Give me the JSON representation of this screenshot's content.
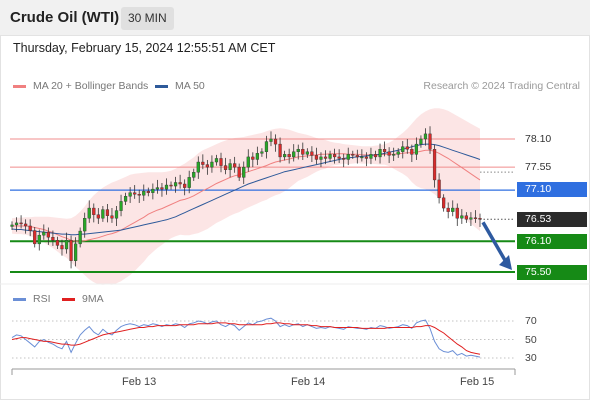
{
  "header": {
    "instrument": "Crude Oil (WTI)",
    "interval": "30 MIN"
  },
  "timestamp": "Thursday, February 15, 2024 12:55:51 AM CET",
  "legend": {
    "ma20_label": "MA 20 + Bollinger Bands",
    "ma20_color": "#f08080",
    "ma50_label": "MA 50",
    "ma50_color": "#2e5a9a",
    "credit": "Research © 2024 Trading Central"
  },
  "rsi_legend": {
    "rsi_label": "RSI",
    "rsi_color": "#6b8fd6",
    "ma_label": "9MA",
    "ma_color": "#e02020"
  },
  "levels": [
    {
      "value": "78.10",
      "kind": "resistance",
      "color": "#f08c8c"
    },
    {
      "value": "77.55",
      "kind": "resistance",
      "color": "#f08c8c"
    },
    {
      "value": "77.10",
      "kind": "pivot",
      "color": "#2f6fe0"
    },
    {
      "value": "76.53",
      "kind": "last",
      "color": "#2b2b2b"
    },
    {
      "value": "76.10",
      "kind": "support",
      "color": "#168a16"
    },
    {
      "value": "75.50",
      "kind": "support",
      "color": "#168a16"
    }
  ],
  "rsi_levels": [
    "70",
    "50",
    "30"
  ],
  "x_axis": {
    "labels": [
      "Feb 13",
      "Feb 14",
      "Feb 15"
    ]
  },
  "chart_data": {
    "type": "candlestick",
    "title": "Crude Oil (WTI)",
    "interval": "30 MIN",
    "ylim": [
      75.4,
      78.7
    ],
    "closes": [
      76.42,
      76.46,
      76.44,
      76.4,
      76.31,
      76.05,
      76.22,
      76.28,
      76.18,
      76.12,
      76.02,
      75.95,
      76.12,
      75.72,
      76.05,
      76.3,
      76.55,
      76.75,
      76.62,
      76.55,
      76.72,
      76.6,
      76.55,
      76.7,
      76.88,
      76.98,
      77.05,
      77.02,
      77.0,
      77.08,
      77.05,
      77.12,
      77.15,
      77.12,
      77.2,
      77.18,
      77.25,
      77.22,
      77.15,
      77.35,
      77.45,
      77.65,
      77.6,
      77.55,
      77.65,
      77.72,
      77.58,
      77.5,
      77.62,
      77.55,
      77.35,
      77.55,
      77.75,
      77.7,
      77.82,
      77.85,
      78.05,
      78.1,
      78.0,
      77.75,
      77.8,
      77.75,
      77.85,
      77.9,
      77.8,
      77.85,
      77.78,
      77.7,
      77.75,
      77.72,
      77.8,
      77.75,
      77.72,
      77.7,
      77.8,
      77.78,
      77.75,
      77.75,
      77.72,
      77.8,
      77.75,
      77.9,
      77.85,
      77.78,
      77.8,
      77.85,
      77.95,
      77.9,
      77.8,
      78.0,
      78.1,
      78.2,
      77.9,
      77.3,
      76.95,
      76.75,
      76.68,
      76.75,
      76.55,
      76.6,
      76.53,
      76.56,
      76.55,
      76.53
    ],
    "ma20": [
      76.4,
      76.4,
      76.4,
      76.4,
      76.39,
      76.37,
      76.35,
      76.33,
      76.3,
      76.27,
      76.23,
      76.19,
      76.16,
      76.12,
      76.1,
      76.1,
      76.11,
      76.13,
      76.15,
      76.17,
      76.2,
      76.23,
      76.25,
      76.28,
      76.32,
      76.37,
      76.42,
      76.47,
      76.52,
      76.57,
      76.63,
      76.67,
      76.71,
      76.74,
      76.78,
      76.82,
      76.86,
      76.9,
      76.92,
      76.95,
      76.99,
      77.04,
      77.09,
      77.13,
      77.18,
      77.23,
      77.27,
      77.31,
      77.35,
      77.38,
      77.4,
      77.43,
      77.46,
      77.49,
      77.52,
      77.55,
      77.58,
      77.62,
      77.65,
      77.67,
      77.69,
      77.71,
      77.73,
      77.75,
      77.76,
      77.77,
      77.78,
      77.79,
      77.8,
      77.8,
      77.81,
      77.81,
      77.81,
      77.81,
      77.8,
      77.8,
      77.8,
      77.79,
      77.79,
      77.79,
      77.79,
      77.79,
      77.8,
      77.8,
      77.8,
      77.81,
      77.82,
      77.83,
      77.83,
      77.84,
      77.86,
      77.88,
      77.88,
      77.86,
      77.82,
      77.77,
      77.72,
      77.66,
      77.6,
      77.54,
      77.48,
      77.42,
      77.36,
      77.3
    ],
    "bb_upper": [
      76.55,
      76.56,
      76.56,
      76.57,
      76.57,
      76.58,
      76.58,
      76.58,
      76.58,
      76.57,
      76.56,
      76.55,
      76.54,
      76.55,
      76.6,
      76.68,
      76.78,
      76.9,
      77.0,
      77.08,
      77.15,
      77.2,
      77.25,
      77.28,
      77.32,
      77.36,
      77.4,
      77.42,
      77.43,
      77.44,
      77.45,
      77.45,
      77.45,
      77.45,
      77.46,
      77.48,
      77.52,
      77.57,
      77.62,
      77.68,
      77.74,
      77.82,
      77.88,
      77.92,
      77.96,
      78.0,
      78.04,
      78.07,
      78.1,
      78.12,
      78.13,
      78.14,
      78.16,
      78.18,
      78.2,
      78.22,
      78.25,
      78.28,
      78.3,
      78.31,
      78.3,
      78.28,
      78.25,
      78.22,
      78.2,
      78.18,
      78.15,
      78.12,
      78.1,
      78.08,
      78.05,
      78.03,
      78.02,
      78.0,
      77.99,
      77.98,
      77.97,
      77.96,
      77.96,
      77.96,
      77.97,
      77.98,
      78.0,
      78.03,
      78.08,
      78.15,
      78.22,
      78.3,
      78.4,
      78.5,
      78.58,
      78.64,
      78.68,
      78.7,
      78.7,
      78.68,
      78.65,
      78.6,
      78.55,
      78.5,
      78.45,
      78.4,
      78.35,
      78.3
    ],
    "bb_lower": [
      76.25,
      76.24,
      76.24,
      76.23,
      76.21,
      76.16,
      76.12,
      76.08,
      76.02,
      75.97,
      75.9,
      75.83,
      75.78,
      75.69,
      75.6,
      75.52,
      75.44,
      75.36,
      75.3,
      75.26,
      75.25,
      75.26,
      75.25,
      75.28,
      75.32,
      75.38,
      75.44,
      75.52,
      75.61,
      75.7,
      75.81,
      75.89,
      75.97,
      76.03,
      76.1,
      76.16,
      76.2,
      76.23,
      76.22,
      76.22,
      76.24,
      76.26,
      76.3,
      76.34,
      76.4,
      76.46,
      76.5,
      76.55,
      76.6,
      76.64,
      76.67,
      76.72,
      76.76,
      76.8,
      76.84,
      76.88,
      76.91,
      76.96,
      77.0,
      77.03,
      77.08,
      77.14,
      77.21,
      77.28,
      77.32,
      77.36,
      77.41,
      77.46,
      77.5,
      77.52,
      77.57,
      77.59,
      77.6,
      77.62,
      77.61,
      77.62,
      77.63,
      77.62,
      77.62,
      77.62,
      77.61,
      77.6,
      77.6,
      77.57,
      77.52,
      77.47,
      77.42,
      77.36,
      77.26,
      77.18,
      77.14,
      77.12,
      77.08,
      77.02,
      76.94,
      76.86,
      76.79,
      76.72,
      76.65,
      76.58,
      76.51,
      76.44,
      76.37,
      76.3
    ],
    "ma50": [
      76.34,
      76.33,
      76.33,
      76.32,
      76.31,
      76.3,
      76.29,
      76.28,
      76.27,
      76.26,
      76.25,
      76.24,
      76.24,
      76.23,
      76.23,
      76.24,
      76.24,
      76.25,
      76.26,
      76.27,
      76.28,
      76.29,
      76.3,
      76.31,
      76.32,
      76.34,
      76.36,
      76.38,
      76.4,
      76.42,
      76.44,
      76.46,
      76.48,
      76.5,
      76.52,
      76.55,
      76.58,
      76.62,
      76.66,
      76.7,
      76.74,
      76.78,
      76.82,
      76.86,
      76.9,
      76.94,
      76.98,
      77.02,
      77.06,
      77.1,
      77.14,
      77.18,
      77.22,
      77.25,
      77.28,
      77.31,
      77.34,
      77.37,
      77.4,
      77.43,
      77.46,
      77.48,
      77.5,
      77.52,
      77.54,
      77.56,
      77.58,
      77.6,
      77.62,
      77.64,
      77.66,
      77.68,
      77.7,
      77.72,
      77.73,
      77.74,
      77.75,
      77.76,
      77.77,
      77.78,
      77.79,
      77.8,
      77.82,
      77.84,
      77.86,
      77.88,
      77.9,
      77.92,
      77.95,
      77.97,
      77.99,
      78.0,
      78.0,
      77.99,
      77.97,
      77.94,
      77.91,
      77.88,
      77.85,
      77.82,
      77.79,
      77.76,
      77.73,
      77.7
    ],
    "levels": {
      "resistance": [
        78.1,
        77.55
      ],
      "pivot": 77.1,
      "last": 76.53,
      "support": [
        76.1,
        75.5
      ]
    },
    "forecast": {
      "from": 76.53,
      "to": 75.5
    },
    "rsi": {
      "ylim": [
        20,
        80
      ],
      "ticks": [
        70,
        50,
        30
      ],
      "rsi": [
        52,
        55,
        54,
        50,
        46,
        42,
        48,
        50,
        47,
        45,
        42,
        40,
        48,
        36,
        46,
        55,
        60,
        64,
        58,
        55,
        61,
        57,
        55,
        60,
        64,
        66,
        67,
        66,
        64,
        66,
        65,
        67,
        66,
        64,
        66,
        65,
        67,
        66,
        63,
        67,
        68,
        70,
        69,
        67,
        69,
        70,
        66,
        64,
        67,
        65,
        60,
        64,
        68,
        66,
        69,
        70,
        72,
        73,
        70,
        64,
        66,
        64,
        66,
        67,
        64,
        66,
        64,
        62,
        63,
        62,
        64,
        63,
        62,
        61,
        64,
        63,
        62,
        62,
        61,
        63,
        62,
        65,
        64,
        62,
        63,
        64,
        66,
        65,
        62,
        68,
        70,
        71,
        62,
        48,
        40,
        37,
        36,
        38,
        33,
        35,
        32,
        33,
        32,
        31
      ],
      "ma": [
        50,
        51,
        52,
        52,
        51,
        50,
        49,
        48,
        48,
        47,
        46,
        45,
        45,
        44,
        44,
        45,
        47,
        49,
        51,
        53,
        55,
        56,
        57,
        58,
        59,
        60,
        61,
        62,
        63,
        63,
        64,
        64,
        65,
        65,
        65,
        65,
        65,
        66,
        66,
        66,
        66,
        67,
        67,
        67,
        67,
        68,
        68,
        68,
        67,
        67,
        66,
        66,
        66,
        66,
        66,
        66,
        67,
        67,
        68,
        68,
        67,
        67,
        66,
        66,
        66,
        66,
        65,
        65,
        64,
        64,
        64,
        63,
        63,
        63,
        63,
        63,
        63,
        62,
        62,
        62,
        62,
        62,
        62,
        63,
        63,
        63,
        63,
        63,
        63,
        64,
        64,
        65,
        65,
        63,
        60,
        57,
        53,
        49,
        45,
        42,
        38,
        36,
        35,
        34
      ]
    }
  }
}
